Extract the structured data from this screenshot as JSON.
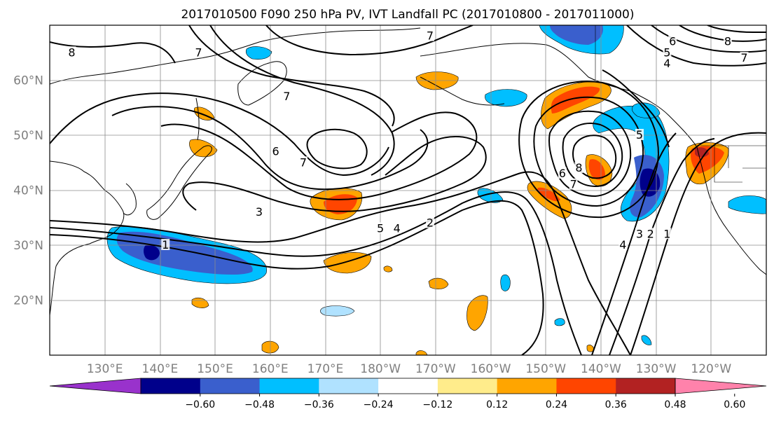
{
  "figure": {
    "title": "2017010500 F090 250 hPa PV, IVT Landfall PC (2017010800 - 2017011000)"
  },
  "chart_data": {
    "type": "map",
    "title": "2017010500 F090 250 hPa PV, IVT Landfall PC (2017010800 - 2017011000)",
    "lon_ticks": [
      "130°E",
      "140°E",
      "150°E",
      "160°E",
      "170°E",
      "180°W",
      "170°W",
      "160°W",
      "150°W",
      "140°W",
      "130°W",
      "120°W"
    ],
    "lat_ticks": [
      "20°N",
      "30°N",
      "40°N",
      "50°N",
      "60°N"
    ],
    "lon_range": [
      120,
      250
    ],
    "lat_range": [
      10,
      70
    ],
    "colorbar": {
      "ticks": [
        "−0.60",
        "−0.48",
        "−0.36",
        "−0.24",
        "−0.12",
        "0.12",
        "0.24",
        "0.36",
        "0.48",
        "0.60"
      ],
      "colors": [
        "#9932cc",
        "#00008b",
        "#3a5fcd",
        "#00bfff",
        "#b0e2ff",
        "#ffffff",
        "#ffec8b",
        "#ffa500",
        "#ff4500",
        "#b22222",
        "#ff82ab"
      ],
      "extend": "both"
    },
    "contour_labels": [
      {
        "text": "8",
        "lon": 124,
        "lat": 65
      },
      {
        "text": "7",
        "lon": 147,
        "lat": 65
      },
      {
        "text": "7",
        "lon": 163,
        "lat": 57
      },
      {
        "text": "6",
        "lon": 161,
        "lat": 47
      },
      {
        "text": "7",
        "lon": 166,
        "lat": 45
      },
      {
        "text": "3",
        "lon": 158,
        "lat": 36
      },
      {
        "text": "1",
        "lon": 141,
        "lat": 30
      },
      {
        "text": "5",
        "lon": 180,
        "lat": 33
      },
      {
        "text": "4",
        "lon": 183,
        "lat": 33
      },
      {
        "text": "2",
        "lon": 189,
        "lat": 34
      },
      {
        "text": "7",
        "lon": 189,
        "lat": 68
      },
      {
        "text": "6",
        "lon": 213,
        "lat": 43
      },
      {
        "text": "7",
        "lon": 215,
        "lat": 41
      },
      {
        "text": "8",
        "lon": 216,
        "lat": 44
      },
      {
        "text": "5",
        "lon": 227,
        "lat": 50
      },
      {
        "text": "4",
        "lon": 224,
        "lat": 30
      },
      {
        "text": "3",
        "lon": 227,
        "lat": 32
      },
      {
        "text": "2",
        "lon": 229,
        "lat": 32
      },
      {
        "text": "1",
        "lon": 232,
        "lat": 32
      },
      {
        "text": "6",
        "lon": 233,
        "lat": 67
      },
      {
        "text": "5",
        "lon": 232,
        "lat": 65
      },
      {
        "text": "4",
        "lon": 232,
        "lat": 63
      },
      {
        "text": "8",
        "lon": 243,
        "lat": 67
      },
      {
        "text": "7",
        "lon": 246,
        "lat": 64
      }
    ]
  }
}
